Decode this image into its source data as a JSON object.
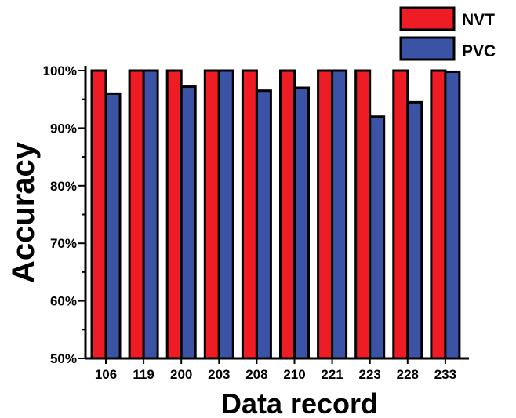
{
  "chart_data": {
    "type": "bar",
    "xlabel": "Data record",
    "ylabel": "Accuracy",
    "categories": [
      "106",
      "119",
      "200",
      "203",
      "208",
      "210",
      "221",
      "223",
      "228",
      "233"
    ],
    "series": [
      {
        "name": "NVT",
        "color": "#ee1c25",
        "values": [
          100,
          100,
          100,
          100,
          100,
          100,
          100,
          100,
          100,
          100
        ]
      },
      {
        "name": "PVC",
        "color": "#3a53a4",
        "values": [
          96.0,
          100,
          97.2,
          100,
          96.5,
          97.0,
          100,
          92.0,
          94.5,
          99.8
        ]
      }
    ],
    "ylim": [
      50,
      100
    ],
    "yticks": [
      "50%",
      "60%",
      "70%",
      "80%",
      "90%",
      "100%"
    ],
    "legend_position": "top-right",
    "grid": false
  }
}
